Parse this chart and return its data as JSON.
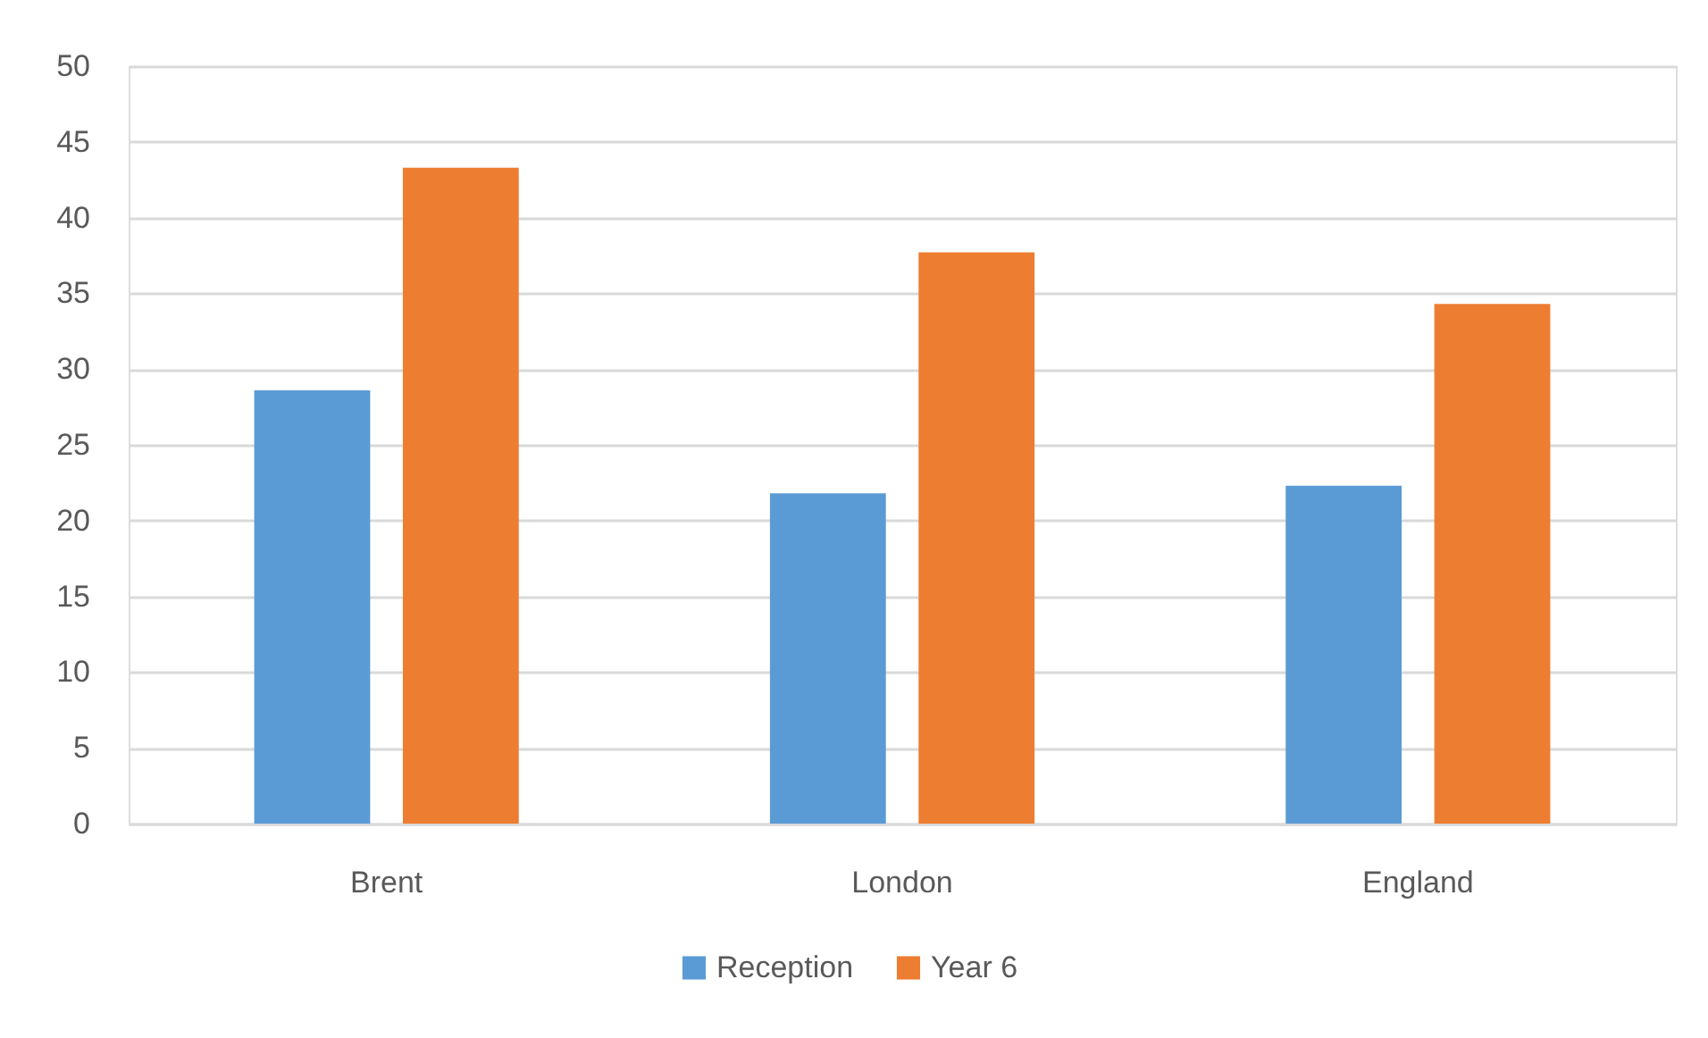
{
  "chart_data": {
    "type": "bar",
    "categories": [
      "Brent",
      "London",
      "England"
    ],
    "series": [
      {
        "name": "Reception",
        "color": "#5b9bd5",
        "values": [
          28.6,
          21.8,
          22.3
        ]
      },
      {
        "name": "Year 6",
        "color": "#ed7d31",
        "values": [
          43.3,
          37.7,
          34.3
        ]
      }
    ],
    "ylim": [
      0,
      50
    ],
    "yticks": [
      0,
      5,
      10,
      15,
      20,
      25,
      30,
      35,
      40,
      45,
      50
    ],
    "grid": "y",
    "legend": "bottom"
  }
}
